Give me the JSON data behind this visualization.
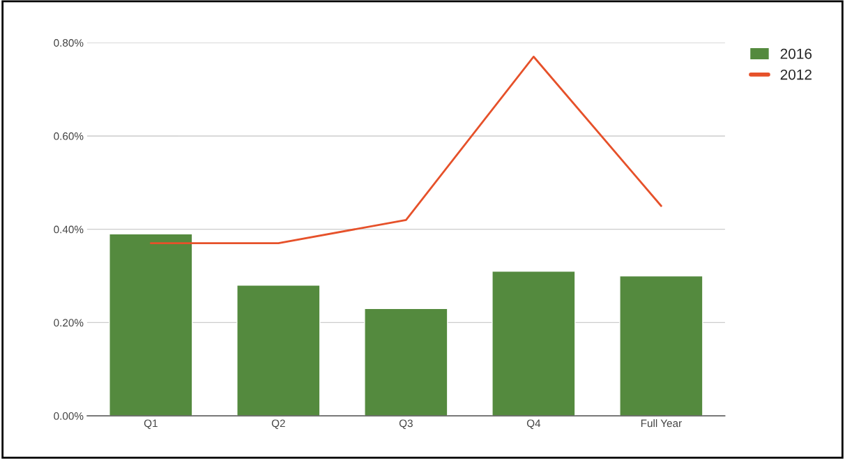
{
  "chart_data": {
    "type": "bar",
    "categories": [
      "Q1",
      "Q2",
      "Q3",
      "Q4",
      "Full Year"
    ],
    "series": [
      {
        "name": "2016",
        "color": "#548a3e",
        "values": [
          0.39,
          0.28,
          0.23,
          0.31,
          0.3
        ]
      },
      {
        "name": "2012",
        "type": "line",
        "color": "#e6512a",
        "values": [
          0.37,
          0.37,
          0.42,
          0.77,
          0.45
        ]
      }
    ],
    "ylim": [
      0,
      0.8
    ],
    "yticks": [
      {
        "value": 0,
        "label": "0.00%"
      },
      {
        "value": 0.2,
        "label": "0.20%"
      },
      {
        "value": 0.4,
        "label": "0.40%"
      },
      {
        "value": 0.6,
        "label": "0.60%"
      },
      {
        "value": 0.8,
        "label": "0.80%"
      }
    ],
    "grid": "y",
    "legend": "top right",
    "marker": "none",
    "line_style": "solid"
  }
}
